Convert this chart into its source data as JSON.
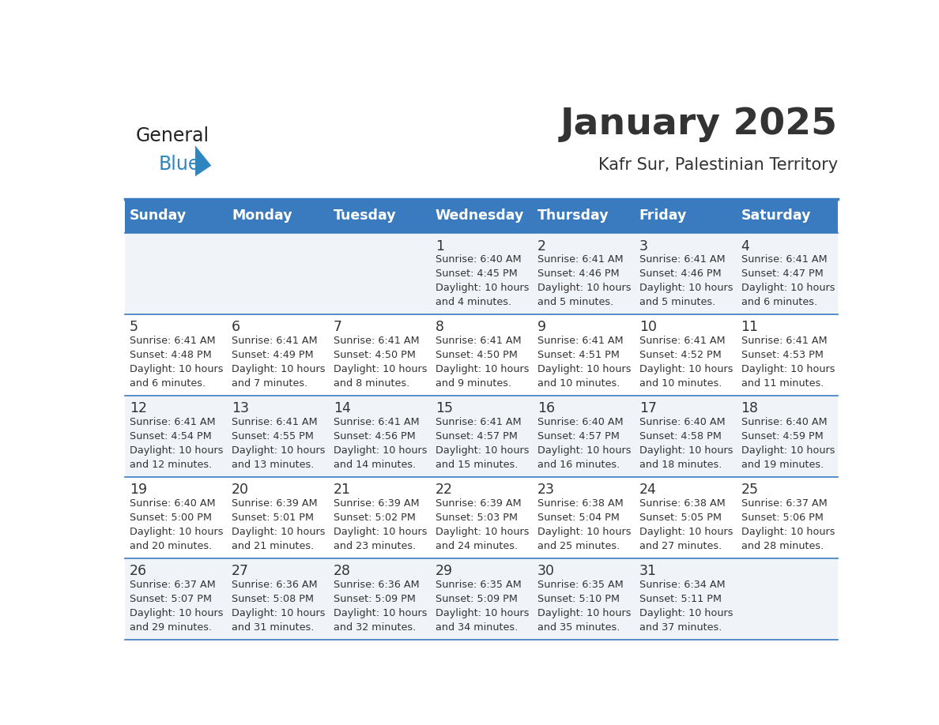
{
  "title": "January 2025",
  "subtitle": "Kafr Sur, Palestinian Territory",
  "header_color": "#3a7bbf",
  "header_text_color": "#ffffff",
  "cell_bg_color1": "#f0f4f8",
  "cell_bg_color2": "#ffffff",
  "border_color": "#3a7bbf",
  "text_color": "#333333",
  "days_of_week": [
    "Sunday",
    "Monday",
    "Tuesday",
    "Wednesday",
    "Thursday",
    "Friday",
    "Saturday"
  ],
  "calendar_data": [
    [
      {
        "day": null
      },
      {
        "day": null
      },
      {
        "day": null
      },
      {
        "day": 1,
        "sunrise": "6:40 AM",
        "sunset": "4:45 PM",
        "daylight": "10 hours and 4 minutes."
      },
      {
        "day": 2,
        "sunrise": "6:41 AM",
        "sunset": "4:46 PM",
        "daylight": "10 hours and 5 minutes."
      },
      {
        "day": 3,
        "sunrise": "6:41 AM",
        "sunset": "4:46 PM",
        "daylight": "10 hours and 5 minutes."
      },
      {
        "day": 4,
        "sunrise": "6:41 AM",
        "sunset": "4:47 PM",
        "daylight": "10 hours and 6 minutes."
      }
    ],
    [
      {
        "day": 5,
        "sunrise": "6:41 AM",
        "sunset": "4:48 PM",
        "daylight": "10 hours and 6 minutes."
      },
      {
        "day": 6,
        "sunrise": "6:41 AM",
        "sunset": "4:49 PM",
        "daylight": "10 hours and 7 minutes."
      },
      {
        "day": 7,
        "sunrise": "6:41 AM",
        "sunset": "4:50 PM",
        "daylight": "10 hours and 8 minutes."
      },
      {
        "day": 8,
        "sunrise": "6:41 AM",
        "sunset": "4:50 PM",
        "daylight": "10 hours and 9 minutes."
      },
      {
        "day": 9,
        "sunrise": "6:41 AM",
        "sunset": "4:51 PM",
        "daylight": "10 hours and 10 minutes."
      },
      {
        "day": 10,
        "sunrise": "6:41 AM",
        "sunset": "4:52 PM",
        "daylight": "10 hours and 10 minutes."
      },
      {
        "day": 11,
        "sunrise": "6:41 AM",
        "sunset": "4:53 PM",
        "daylight": "10 hours and 11 minutes."
      }
    ],
    [
      {
        "day": 12,
        "sunrise": "6:41 AM",
        "sunset": "4:54 PM",
        "daylight": "10 hours and 12 minutes."
      },
      {
        "day": 13,
        "sunrise": "6:41 AM",
        "sunset": "4:55 PM",
        "daylight": "10 hours and 13 minutes."
      },
      {
        "day": 14,
        "sunrise": "6:41 AM",
        "sunset": "4:56 PM",
        "daylight": "10 hours and 14 minutes."
      },
      {
        "day": 15,
        "sunrise": "6:41 AM",
        "sunset": "4:57 PM",
        "daylight": "10 hours and 15 minutes."
      },
      {
        "day": 16,
        "sunrise": "6:40 AM",
        "sunset": "4:57 PM",
        "daylight": "10 hours and 16 minutes."
      },
      {
        "day": 17,
        "sunrise": "6:40 AM",
        "sunset": "4:58 PM",
        "daylight": "10 hours and 18 minutes."
      },
      {
        "day": 18,
        "sunrise": "6:40 AM",
        "sunset": "4:59 PM",
        "daylight": "10 hours and 19 minutes."
      }
    ],
    [
      {
        "day": 19,
        "sunrise": "6:40 AM",
        "sunset": "5:00 PM",
        "daylight": "10 hours and 20 minutes."
      },
      {
        "day": 20,
        "sunrise": "6:39 AM",
        "sunset": "5:01 PM",
        "daylight": "10 hours and 21 minutes."
      },
      {
        "day": 21,
        "sunrise": "6:39 AM",
        "sunset": "5:02 PM",
        "daylight": "10 hours and 23 minutes."
      },
      {
        "day": 22,
        "sunrise": "6:39 AM",
        "sunset": "5:03 PM",
        "daylight": "10 hours and 24 minutes."
      },
      {
        "day": 23,
        "sunrise": "6:38 AM",
        "sunset": "5:04 PM",
        "daylight": "10 hours and 25 minutes."
      },
      {
        "day": 24,
        "sunrise": "6:38 AM",
        "sunset": "5:05 PM",
        "daylight": "10 hours and 27 minutes."
      },
      {
        "day": 25,
        "sunrise": "6:37 AM",
        "sunset": "5:06 PM",
        "daylight": "10 hours and 28 minutes."
      }
    ],
    [
      {
        "day": 26,
        "sunrise": "6:37 AM",
        "sunset": "5:07 PM",
        "daylight": "10 hours and 29 minutes."
      },
      {
        "day": 27,
        "sunrise": "6:36 AM",
        "sunset": "5:08 PM",
        "daylight": "10 hours and 31 minutes."
      },
      {
        "day": 28,
        "sunrise": "6:36 AM",
        "sunset": "5:09 PM",
        "daylight": "10 hours and 32 minutes."
      },
      {
        "day": 29,
        "sunrise": "6:35 AM",
        "sunset": "5:09 PM",
        "daylight": "10 hours and 34 minutes."
      },
      {
        "day": 30,
        "sunrise": "6:35 AM",
        "sunset": "5:10 PM",
        "daylight": "10 hours and 35 minutes."
      },
      {
        "day": 31,
        "sunrise": "6:34 AM",
        "sunset": "5:11 PM",
        "daylight": "10 hours and 37 minutes."
      },
      {
        "day": null
      }
    ]
  ],
  "logo_general_color": "#222222",
  "logo_blue_color": "#2e86c1",
  "logo_triangle_color": "#2e86c1"
}
